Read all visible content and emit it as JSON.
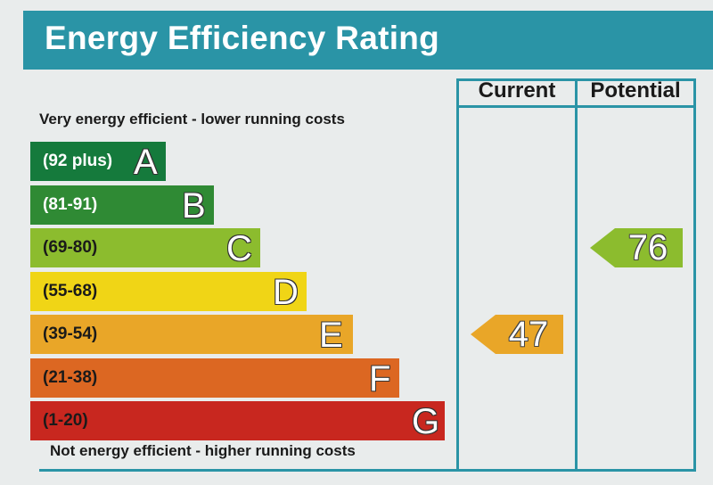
{
  "header": {
    "title": "Energy Efficiency Rating"
  },
  "columns": {
    "current": "Current",
    "potential": "Potential"
  },
  "captions": {
    "top": "Very energy efficient - lower running costs",
    "bottom": "Not energy efficient - higher running costs"
  },
  "chart_data": {
    "type": "bar",
    "categories": [
      "A",
      "B",
      "C",
      "D",
      "E",
      "F",
      "G"
    ],
    "ranges": [
      "(92 plus)",
      "(81-91)",
      "(69-80)",
      "(55-68)",
      "(39-54)",
      "(21-38)",
      "(1-20)"
    ],
    "colors": [
      "#157a3c",
      "#2f8a34",
      "#8cbc2e",
      "#f0d516",
      "#e9a628",
      "#dc6722",
      "#c8271f"
    ],
    "range_text_colors": [
      "#ffffff",
      "#ffffff",
      "#1a1a1a",
      "#1a1a1a",
      "#1a1a1a",
      "#1a1a1a",
      "#1a1a1a"
    ],
    "current": {
      "value": 47,
      "band": "E",
      "color": "#e9a628"
    },
    "potential": {
      "value": 76,
      "band": "C",
      "color": "#8cbc2e"
    }
  }
}
